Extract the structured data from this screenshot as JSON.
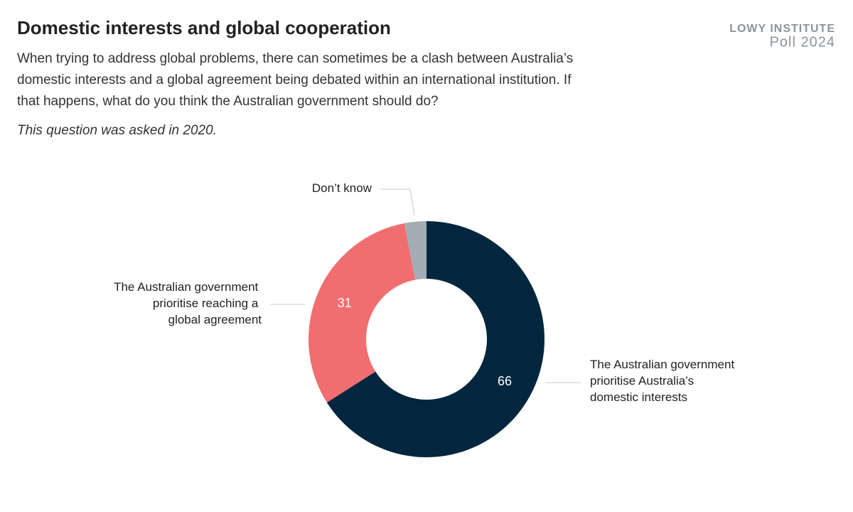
{
  "brand": {
    "line1": "LOWY INSTITUTE",
    "line2": "Poll 2024"
  },
  "chart_data": {
    "type": "donut",
    "title": "Domestic interests and global cooperation",
    "subtitle": "When trying to address global problems, there can sometimes be a clash between Australia’s domestic interests and a global agreement being debated within an international institution. If that happens, what do you think the Australian government should do?",
    "note": "This question was asked in 2020.",
    "categories": [
      "The Australian government prioritise Australia’s domestic interests",
      "The Australian government prioritise reaching a global agreement",
      "Don’t know"
    ],
    "values": [
      66,
      31,
      3
    ],
    "value_labels": [
      "66",
      "31",
      null
    ],
    "colors": [
      "#02263d",
      "#f06e70",
      "#a3adb4"
    ]
  }
}
